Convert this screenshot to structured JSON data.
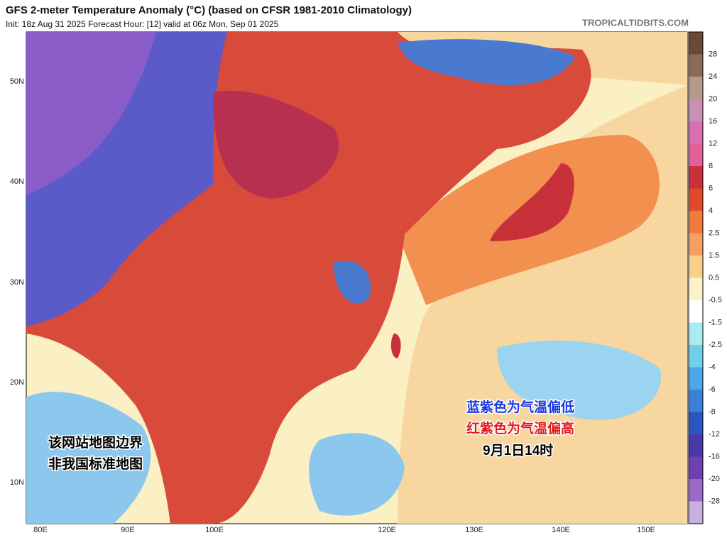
{
  "header": {
    "title": "GFS 2-meter Temperature Anomaly (°C) (based on CFSR 1981-2010 Climatology)",
    "subtitle": "Init: 18z Aug 31 2025   Forecast Hour: [12]   valid at 06z Mon, Sep 01 2025",
    "watermark": "TROPICALTIDBITS.COM"
  },
  "map": {
    "lat_labels": [
      "50N",
      "40N",
      "30N",
      "20N",
      "10N"
    ],
    "lon_labels": [
      "80E",
      "90E",
      "100E",
      "120E",
      "130E",
      "140E",
      "150E"
    ]
  },
  "colorbar": {
    "labels": [
      "28",
      "24",
      "20",
      "16",
      "12",
      "8",
      "6",
      "4",
      "2.5",
      "1.5",
      "0.5",
      "-0.5",
      "-1.5",
      "-2.5",
      "-4",
      "-6",
      "-8",
      "-12",
      "-16",
      "-20",
      "-28"
    ],
    "colors": [
      "#6b4a35",
      "#8e6a55",
      "#b39a8a",
      "#c98fb5",
      "#d870b0",
      "#e0609a",
      "#c8303a",
      "#e04a2a",
      "#f07a3a",
      "#f5a060",
      "#f8d08a",
      "#fbf2c8",
      "#ffffff",
      "#a8ecf0",
      "#6fd0ec",
      "#4aa8e6",
      "#3a80d8",
      "#2a56c0",
      "#4a3aa8",
      "#7040b0",
      "#9a68c8",
      "#c8b0e0"
    ]
  },
  "annotations": {
    "cold": "蓝紫色为气温偏低",
    "warm": "红紫色为气温偏高",
    "time": "9月1日14时",
    "note_1": "该网站地图边界",
    "note_2": "非我国标准地图"
  }
}
